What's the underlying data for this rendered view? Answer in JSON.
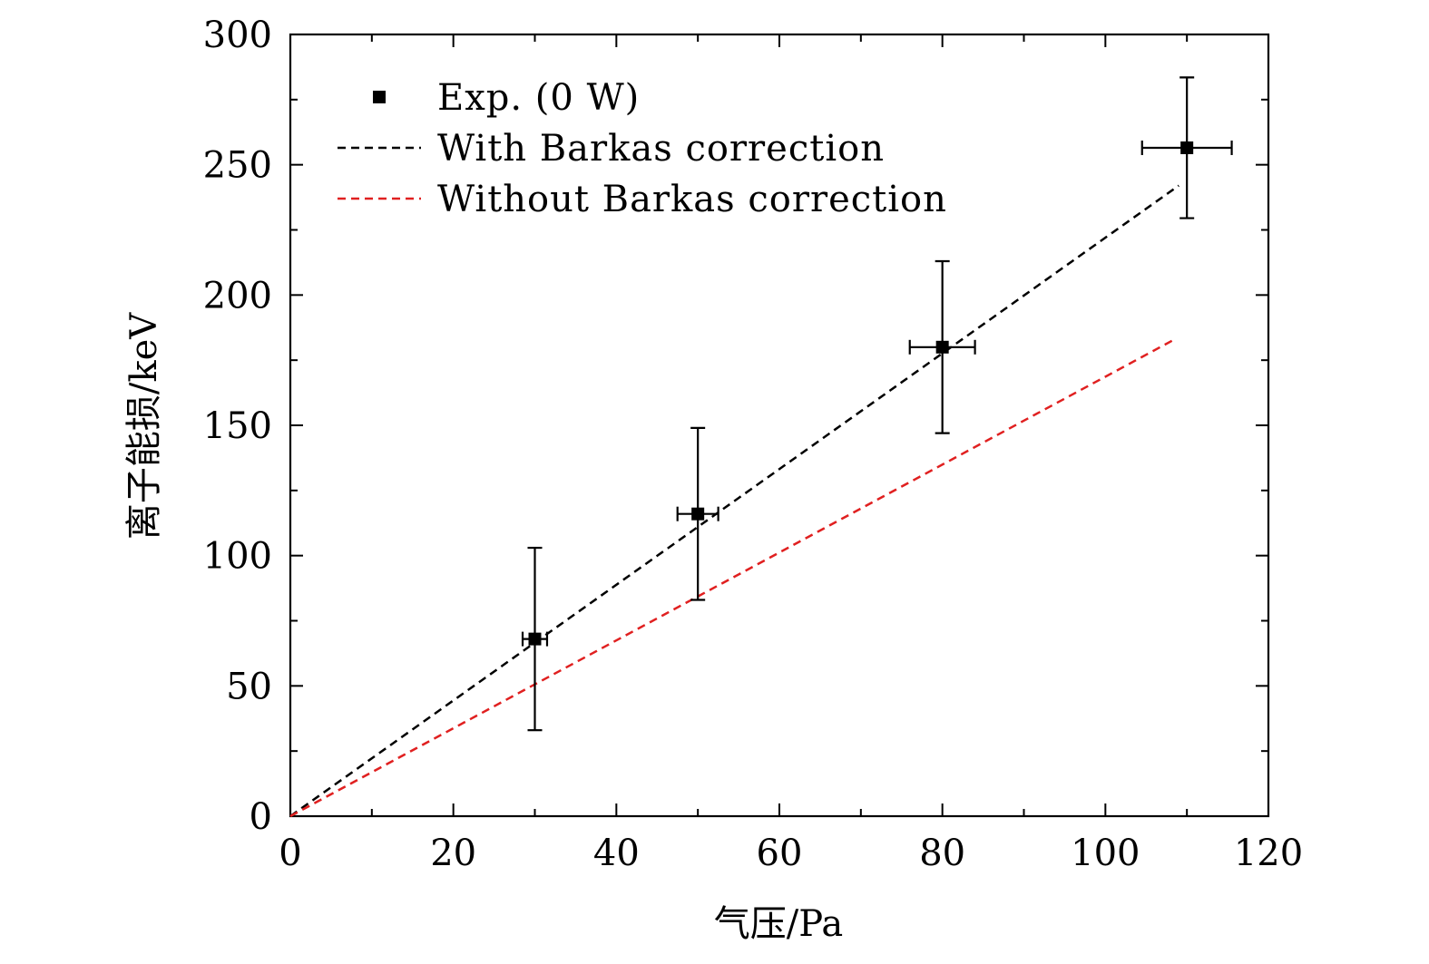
{
  "chart_data": {
    "type": "scatter",
    "title": "",
    "xlabel": "气压/Pa",
    "ylabel": "离子能损/keV",
    "xlim": [
      0,
      120
    ],
    "ylim": [
      0,
      300
    ],
    "xticks": [
      0,
      20,
      40,
      60,
      80,
      100,
      120
    ],
    "yticks": [
      0,
      50,
      100,
      150,
      200,
      250,
      300
    ],
    "grid": false,
    "legend_position": "top-left",
    "series": [
      {
        "name": "Exp. (0 W)",
        "kind": "points",
        "marker": "square",
        "color": "#000000",
        "points": [
          {
            "x": 30,
            "y": 68,
            "xerr": 1.5,
            "yerr_low": 35,
            "yerr_high": 35
          },
          {
            "x": 50,
            "y": 116,
            "xerr": 2.5,
            "yerr_low": 33,
            "yerr_high": 33
          },
          {
            "x": 80,
            "y": 180,
            "xerr": 4,
            "yerr_low": 33,
            "yerr_high": 33
          },
          {
            "x": 110,
            "y": 256.5,
            "xerr": 5.5,
            "yerr_low": 27,
            "yerr_high": 27
          }
        ]
      },
      {
        "name": "With Barkas correction",
        "kind": "dashed-line",
        "color": "#000000",
        "x": [
          0,
          109
        ],
        "y": [
          0,
          242
        ]
      },
      {
        "name": "Without Barkas correction",
        "kind": "dashed-line",
        "color": "#e02020",
        "x": [
          0,
          108.5
        ],
        "y": [
          0,
          183
        ]
      }
    ]
  }
}
